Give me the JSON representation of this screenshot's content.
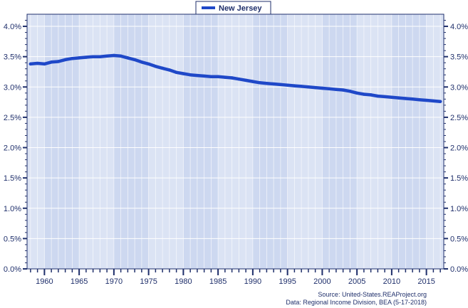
{
  "chart_data": {
    "type": "line",
    "legend": {
      "position": "top-center",
      "entries": [
        "New Jersey"
      ]
    },
    "series": [
      {
        "name": "New Jersey",
        "color": "#1f48c8",
        "x": [
          1958,
          1959,
          1960,
          1961,
          1962,
          1963,
          1964,
          1965,
          1966,
          1967,
          1968,
          1969,
          1970,
          1971,
          1972,
          1973,
          1974,
          1975,
          1976,
          1977,
          1978,
          1979,
          1980,
          1981,
          1982,
          1983,
          1984,
          1985,
          1986,
          1987,
          1988,
          1989,
          1990,
          1991,
          1992,
          1993,
          1994,
          1995,
          1996,
          1997,
          1998,
          1999,
          2000,
          2001,
          2002,
          2003,
          2004,
          2005,
          2006,
          2007,
          2008,
          2009,
          2010,
          2011,
          2012,
          2013,
          2014,
          2015,
          2016,
          2017
        ],
        "y": [
          3.38,
          3.39,
          3.38,
          3.41,
          3.42,
          3.45,
          3.47,
          3.48,
          3.49,
          3.5,
          3.5,
          3.51,
          3.52,
          3.51,
          3.48,
          3.45,
          3.41,
          3.38,
          3.34,
          3.31,
          3.28,
          3.24,
          3.22,
          3.2,
          3.19,
          3.18,
          3.17,
          3.17,
          3.16,
          3.15,
          3.13,
          3.11,
          3.09,
          3.07,
          3.06,
          3.05,
          3.04,
          3.03,
          3.02,
          3.01,
          3.0,
          2.99,
          2.98,
          2.97,
          2.96,
          2.95,
          2.93,
          2.9,
          2.88,
          2.87,
          2.85,
          2.84,
          2.83,
          2.82,
          2.81,
          2.8,
          2.79,
          2.78,
          2.77,
          2.76
        ]
      }
    ],
    "x_ticks": [
      1960,
      1965,
      1970,
      1975,
      1980,
      1985,
      1990,
      1995,
      2000,
      2005,
      2010,
      2015
    ],
    "xlim": [
      1957.5,
      2017.5
    ],
    "y_ticks": [
      "0.0%",
      "0.5%",
      "1.0%",
      "1.5%",
      "2.0%",
      "2.5%",
      "3.0%",
      "3.5%",
      "4.0%"
    ],
    "y_tick_values": [
      0,
      0.5,
      1.0,
      1.5,
      2.0,
      2.5,
      3.0,
      3.5,
      4.0
    ],
    "ylim": [
      0,
      4.2
    ],
    "grid": true,
    "colors": {
      "plot_bg": "#dbe3f4",
      "band_dark": "#cdd8f0",
      "axis": "#1f2f6b",
      "grid": "#ffffff"
    }
  },
  "source": {
    "line1": "Source: United-States.REAProject.org",
    "line2": "Data: Regional Income Division, BEA (5-17-2018)"
  }
}
